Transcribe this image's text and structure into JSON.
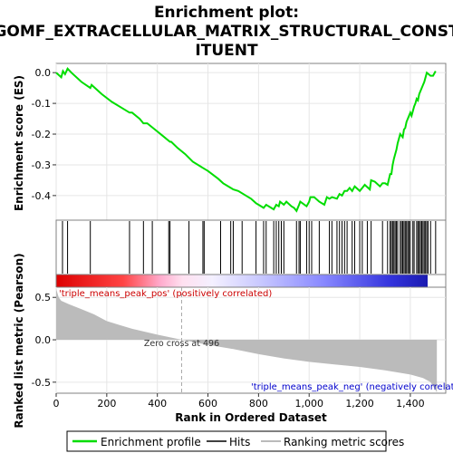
{
  "title_lines": [
    "Enrichment plot:",
    "GOMF_EXTRACELLULAR_MATRIX_STRUCTURAL_CONST",
    "ITUENT"
  ],
  "chart_data": {
    "type": "line",
    "x_range": [
      0,
      1540
    ],
    "n_genes": 1505,
    "x_ticks": [
      0,
      200,
      400,
      600,
      800,
      1000,
      1200,
      1400
    ],
    "x_tick_labels": [
      "0",
      "200",
      "400",
      "600",
      "800",
      "1,000",
      "1,200",
      "1,400"
    ],
    "xlabel": "Rank in Ordered Dataset",
    "es_panel": {
      "ylabel": "Enrichment score (ES)",
      "ylim": [
        -0.48,
        0.03
      ],
      "y_ticks": [
        0.0,
        -0.1,
        -0.2,
        -0.3,
        -0.4
      ],
      "y_tick_labels": [
        "0.0",
        "-0.1",
        "-0.2",
        "-0.3",
        "-0.4"
      ],
      "series": [
        {
          "name": "Enrichment profile",
          "color": "#00dd00",
          "x": [
            0,
            20,
            27,
            35,
            45,
            60,
            100,
            135,
            140,
            180,
            220,
            260,
            290,
            300,
            330,
            345,
            360,
            390,
            420,
            450,
            455,
            480,
            510,
            540,
            570,
            580,
            600,
            640,
            660,
            690,
            700,
            720,
            740,
            770,
            790,
            800,
            820,
            830,
            850,
            860,
            870,
            880,
            885,
            900,
            910,
            930,
            940,
            950,
            960,
            965,
            990,
            1000,
            1005,
            1020,
            1040,
            1060,
            1070,
            1080,
            1090,
            1110,
            1120,
            1130,
            1140,
            1150,
            1160,
            1170,
            1180,
            1200,
            1210,
            1220,
            1240,
            1245,
            1260,
            1280,
            1290,
            1300,
            1310,
            1320,
            1325,
            1330,
            1335,
            1340,
            1345,
            1350,
            1360,
            1370,
            1375,
            1380,
            1385,
            1390,
            1400,
            1405,
            1410,
            1415,
            1420,
            1425,
            1430,
            1435,
            1440,
            1445,
            1450,
            1455,
            1460,
            1465,
            1480,
            1490,
            1500
          ],
          "y": [
            0.0,
            -0.015,
            0.005,
            -0.005,
            0.013,
            0.0,
            -0.03,
            -0.05,
            -0.04,
            -0.07,
            -0.095,
            -0.115,
            -0.13,
            -0.13,
            -0.15,
            -0.165,
            -0.165,
            -0.185,
            -0.205,
            -0.225,
            -0.225,
            -0.245,
            -0.265,
            -0.29,
            -0.305,
            -0.31,
            -0.32,
            -0.345,
            -0.36,
            -0.375,
            -0.38,
            -0.385,
            -0.395,
            -0.41,
            -0.425,
            -0.43,
            -0.44,
            -0.43,
            -0.44,
            -0.445,
            -0.43,
            -0.435,
            -0.42,
            -0.43,
            -0.42,
            -0.435,
            -0.44,
            -0.45,
            -0.43,
            -0.42,
            -0.435,
            -0.42,
            -0.405,
            -0.405,
            -0.42,
            -0.43,
            -0.405,
            -0.41,
            -0.405,
            -0.41,
            -0.395,
            -0.4,
            -0.385,
            -0.385,
            -0.375,
            -0.385,
            -0.37,
            -0.385,
            -0.375,
            -0.365,
            -0.38,
            -0.35,
            -0.355,
            -0.37,
            -0.36,
            -0.36,
            -0.365,
            -0.33,
            -0.33,
            -0.3,
            -0.28,
            -0.265,
            -0.25,
            -0.23,
            -0.2,
            -0.21,
            -0.185,
            -0.18,
            -0.16,
            -0.15,
            -0.13,
            -0.14,
            -0.125,
            -0.11,
            -0.1,
            -0.085,
            -0.09,
            -0.07,
            -0.06,
            -0.05,
            -0.04,
            -0.03,
            -0.015,
            0.0,
            -0.01,
            -0.01,
            0.005
          ]
        }
      ]
    },
    "hits_panel": {
      "legend": "Hits",
      "color": "#000000",
      "positions": [
        25,
        45,
        135,
        290,
        345,
        380,
        445,
        450,
        525,
        580,
        585,
        650,
        690,
        700,
        735,
        790,
        820,
        830,
        860,
        870,
        880,
        890,
        900,
        950,
        960,
        965,
        990,
        1000,
        1010,
        1040,
        1080,
        1090,
        1110,
        1120,
        1130,
        1140,
        1150,
        1170,
        1180,
        1200,
        1210,
        1230,
        1245,
        1290,
        1310,
        1320,
        1325,
        1330,
        1335,
        1340,
        1345,
        1350,
        1360,
        1365,
        1370,
        1375,
        1380,
        1385,
        1390,
        1395,
        1400,
        1410,
        1415,
        1425,
        1430,
        1435,
        1440,
        1445,
        1450,
        1455,
        1460,
        1465,
        1470,
        1480,
        1500
      ]
    },
    "rank_metric_panel": {
      "ylabel": "Ranked list metric (Pearson)",
      "legend": "Ranking metric scores",
      "color": "#bbbbbb",
      "ylim": [
        -0.63,
        0.62
      ],
      "y_ticks": [
        0.5,
        0.0,
        -0.5
      ],
      "y_tick_labels": [
        "0.5",
        "0.0",
        "-0.5"
      ],
      "x": [
        0,
        10,
        20,
        50,
        100,
        150,
        200,
        300,
        400,
        496,
        600,
        700,
        800,
        900,
        1000,
        1100,
        1200,
        1300,
        1400,
        1450,
        1480,
        1495,
        1505
      ],
      "values": [
        0.6,
        0.5,
        0.46,
        0.42,
        0.36,
        0.3,
        0.22,
        0.13,
        0.06,
        0.0,
        -0.06,
        -0.11,
        -0.17,
        -0.22,
        -0.26,
        -0.29,
        -0.32,
        -0.36,
        -0.41,
        -0.45,
        -0.5,
        -0.57,
        -0.62
      ],
      "zero_cross": 496,
      "zero_cross_label": "Zero cross at 496",
      "pos_label": "'triple_means_peak_pos' (positively correlated)",
      "neg_label": "'triple_means_peak_neg' (negatively correlated)"
    },
    "legend_placement": "bottom",
    "legend_items": [
      "Enrichment profile",
      "Hits",
      "Ranking metric scores"
    ]
  }
}
